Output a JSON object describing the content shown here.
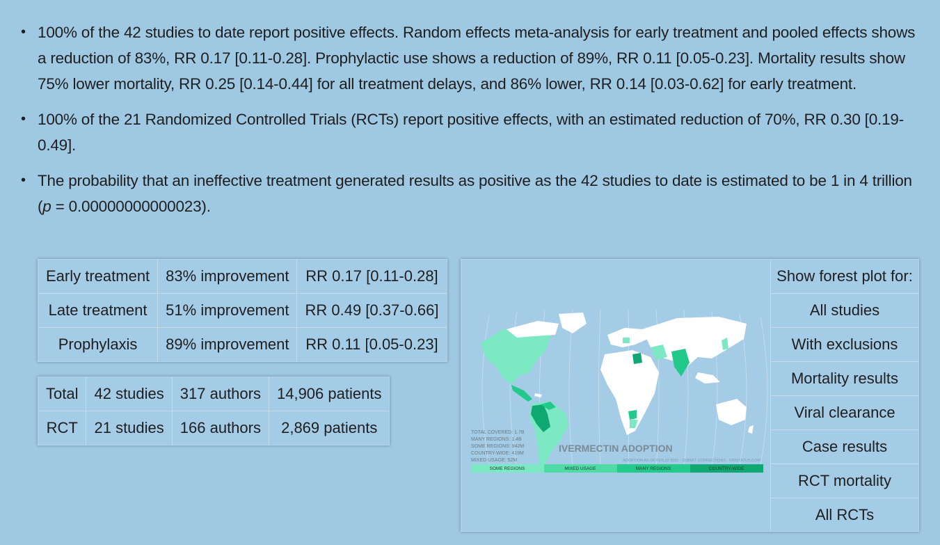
{
  "bullets": [
    {
      "text": "100% of the 42 studies to date report positive effects. Random effects meta-analysis for early treatment and pooled effects shows a reduction of 83%, RR 0.17 [0.11-0.28]. Prophylactic use shows a reduction of 89%, RR 0.11 [0.05-0.23]. Mortality results show 75% lower mortality, RR 0.25 [0.14-0.44] for all treatment delays, and 86% lower, RR 0.14 [0.03-0.62] for early treatment."
    },
    {
      "text": "100% of the 21 Randomized Controlled Trials (RCTs) report positive effects, with an estimated reduction of 70%, RR 0.30 [0.19-0.49]."
    },
    {
      "text_before": "The probability that an ineffective treatment generated results as positive as the 42 studies to date is estimated to be 1 in 4 trillion (",
      "p_symbol": "p",
      "text_after": " = 0.00000000000023)."
    }
  ],
  "treatment_table": {
    "rows": [
      {
        "label": "Early treatment",
        "improvement": "83% improvement",
        "rr": "RR 0.17 [0.11-0.28]"
      },
      {
        "label": "Late treatment",
        "improvement": "51% improvement",
        "rr": "RR 0.49 [0.37-0.66]"
      },
      {
        "label": "Prophylaxis",
        "improvement": "89% improvement",
        "rr": "RR 0.11 [0.05-0.23]"
      }
    ]
  },
  "totals_table": {
    "rows": [
      {
        "label": "Total",
        "studies": "42 studies",
        "authors": "317 authors",
        "patients": "14,906 patients"
      },
      {
        "label": "RCT",
        "studies": "21 studies",
        "authors": "166 authors",
        "patients": "2,869 patients"
      }
    ]
  },
  "map": {
    "title": "IVERMECTIN ADOPTION",
    "subtitle": "ADOPTION AS OF FEB 22 2021 · SUBMIT CORRECTIONS · IVMSTATUS.COM",
    "stats": [
      "TOTAL COVERED: 1.7B",
      "MANY REGIONS: 1.4B",
      "SOME REGIONS: 942M",
      "COUNTRY-WIDE: 419M",
      "MIXED USAGE: 52M"
    ],
    "legend": [
      {
        "label": "SOME REGIONS",
        "color": "#7de8c4"
      },
      {
        "label": "MIXED USAGE",
        "color": "#4fdba6"
      },
      {
        "label": "MANY REGIONS",
        "color": "#22c98a"
      },
      {
        "label": "COUNTRY-WIDE",
        "color": "#0fa872"
      }
    ],
    "colors": {
      "land": "#ffffff",
      "some": "#7de8c4",
      "many": "#22c98a",
      "country": "#0fa872",
      "ocean": "#a8d0ea"
    }
  },
  "forest": {
    "heading": "Show forest plot for:",
    "items": [
      "All studies",
      "With exclusions",
      "Mortality results",
      "Viral clearance",
      "Case results",
      "RCT mortality",
      "All RCTs"
    ]
  }
}
